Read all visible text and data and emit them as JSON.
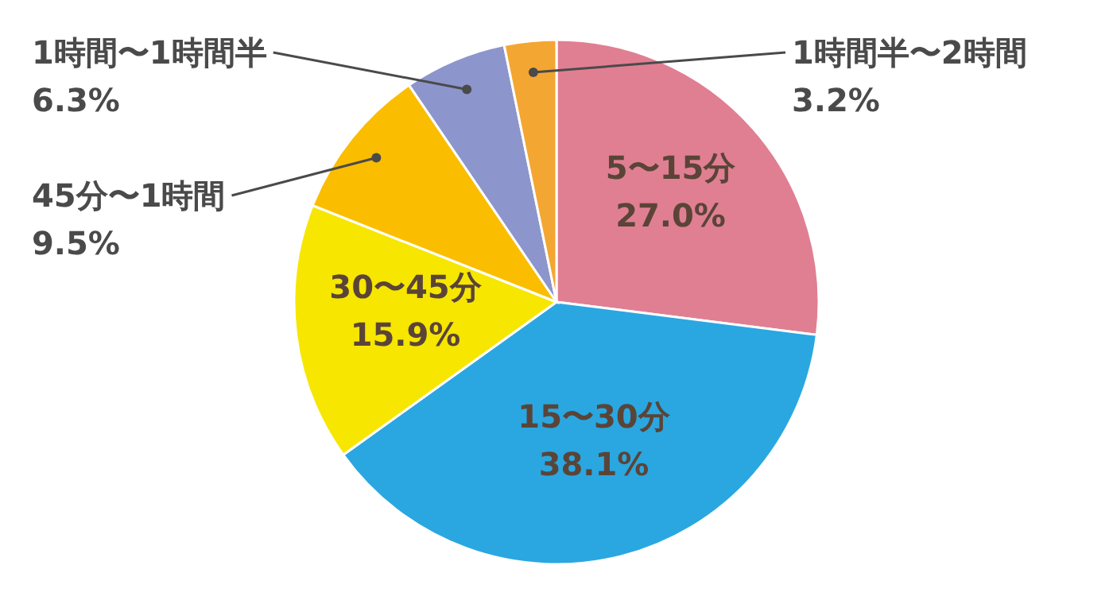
{
  "chart_data": {
    "type": "pie",
    "categories": [
      "5〜15分",
      "15〜30分",
      "30〜45分",
      "45分〜1時間",
      "1時間〜1時間半",
      "1時間半〜2時間"
    ],
    "values": [
      27.0,
      38.1,
      15.9,
      9.5,
      6.3,
      3.2
    ],
    "colors": [
      "#e07f92",
      "#2aa7e0",
      "#f6e600",
      "#fbbd00",
      "#8c96cc",
      "#f4a632"
    ],
    "value_labels": [
      "27.0%",
      "38.1%",
      "15.9%",
      "9.5%",
      "6.3%",
      "3.2%"
    ]
  }
}
